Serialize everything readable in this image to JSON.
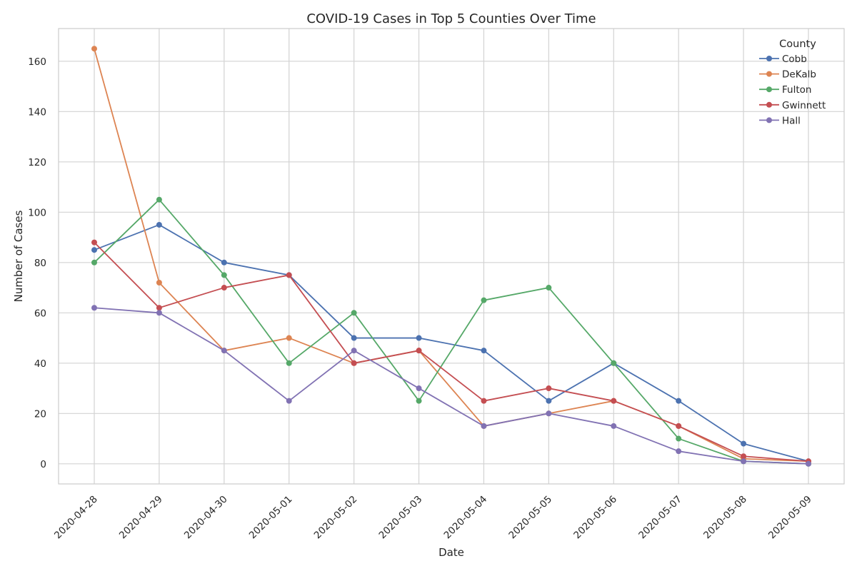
{
  "chart_data": {
    "type": "line",
    "title": "COVID-19 Cases in Top 5 Counties Over Time",
    "xlabel": "Date",
    "ylabel": "Number of Cases",
    "x": [
      "2020-04-28",
      "2020-04-29",
      "2020-04-30",
      "2020-05-01",
      "2020-05-02",
      "2020-05-03",
      "2020-05-04",
      "2020-05-05",
      "2020-05-06",
      "2020-05-07",
      "2020-05-08",
      "2020-05-09"
    ],
    "ylim": [
      -8,
      173
    ],
    "yticks": [
      0,
      20,
      40,
      60,
      80,
      100,
      120,
      140,
      160
    ],
    "grid": true,
    "legend": {
      "title": "County",
      "placement": "top-right"
    },
    "series": [
      {
        "name": "Cobb",
        "color": "#4c72b0",
        "values": [
          85,
          95,
          80,
          75,
          50,
          50,
          45,
          25,
          40,
          25,
          8,
          1
        ]
      },
      {
        "name": "DeKalb",
        "color": "#dd8452",
        "values": [
          165,
          72,
          45,
          50,
          40,
          45,
          15,
          20,
          25,
          15,
          2,
          1
        ]
      },
      {
        "name": "Fulton",
        "color": "#55a868",
        "values": [
          80,
          105,
          75,
          40,
          60,
          25,
          65,
          70,
          40,
          10,
          1,
          0
        ]
      },
      {
        "name": "Gwinnett",
        "color": "#c44e52",
        "values": [
          88,
          62,
          70,
          75,
          40,
          45,
          25,
          30,
          25,
          15,
          3,
          1
        ]
      },
      {
        "name": "Hall",
        "color": "#8172b3",
        "values": [
          62,
          60,
          45,
          25,
          45,
          30,
          15,
          20,
          15,
          5,
          1,
          0
        ]
      }
    ]
  }
}
